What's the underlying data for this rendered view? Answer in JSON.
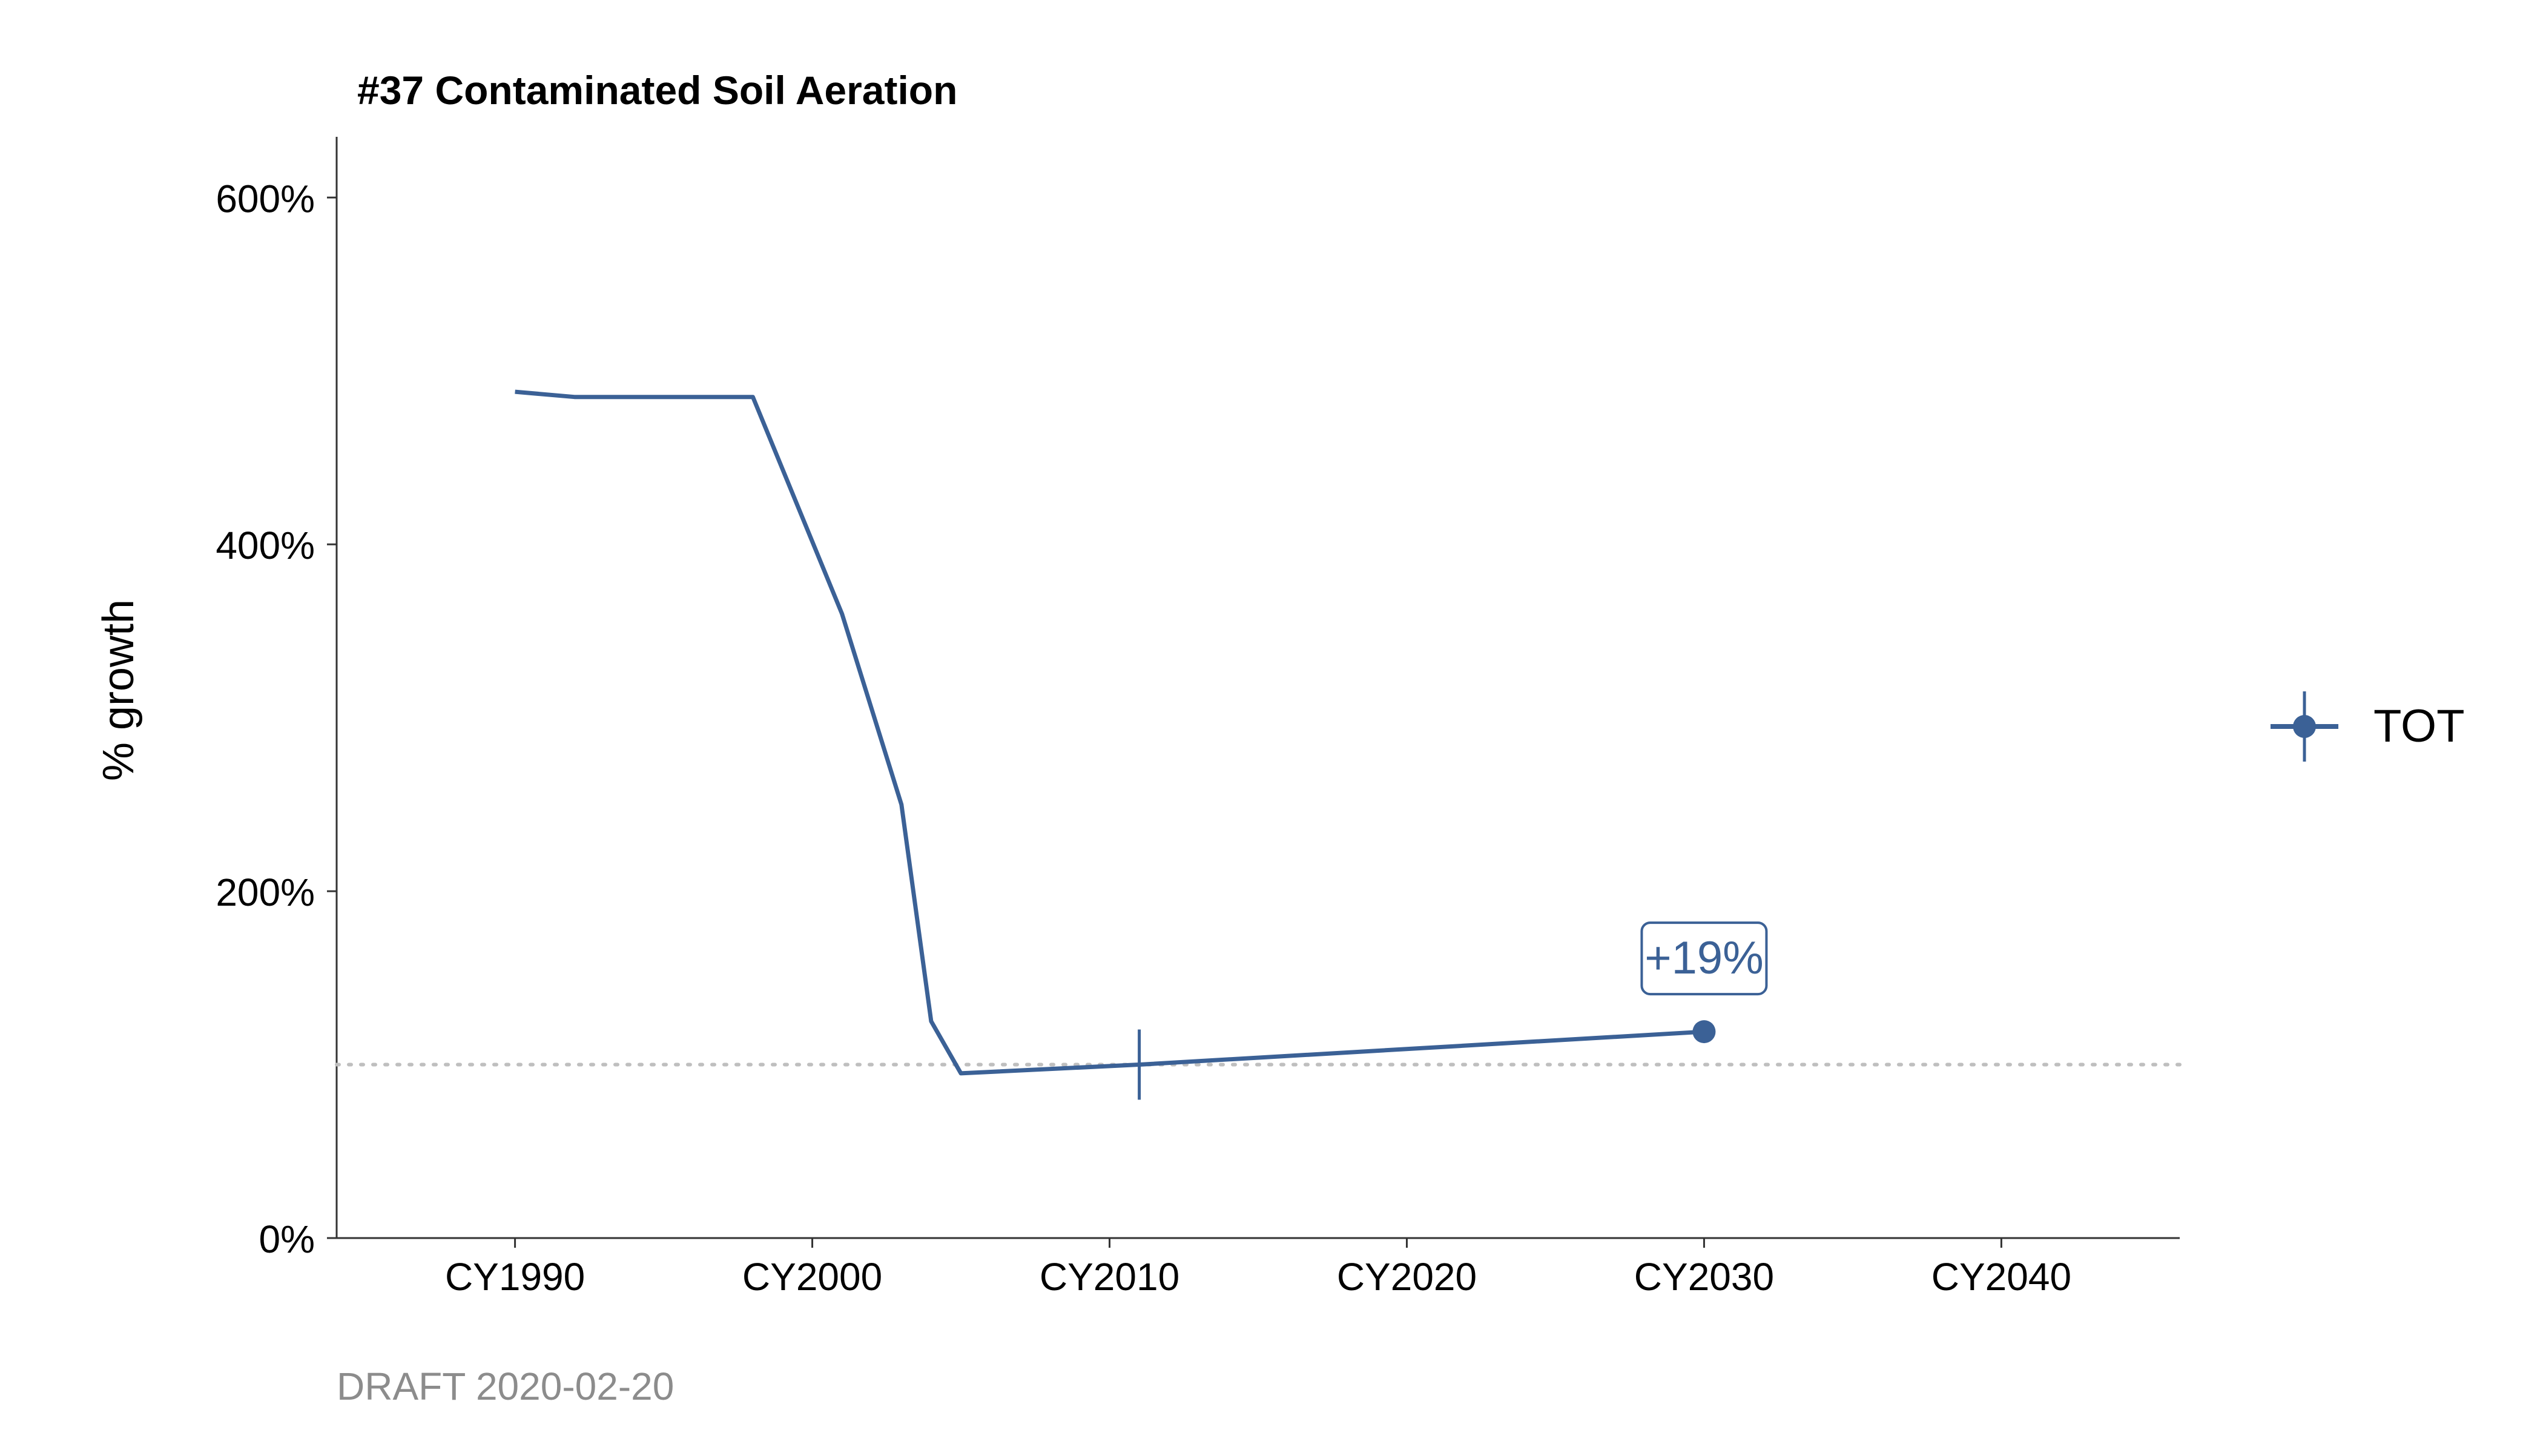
{
  "chart_data": {
    "type": "line",
    "title": "#37 Contaminated Soil Aeration",
    "xlabel": "",
    "ylabel": "% growth",
    "x_categories": [
      "CY1990",
      "CY2000",
      "CY2010",
      "CY2020",
      "CY2030",
      "CY2040"
    ],
    "xlim": [
      1984,
      2046
    ],
    "ylim": [
      0,
      6.35
    ],
    "y_ticks": [
      0,
      2,
      4,
      6
    ],
    "y_tick_labels": [
      "0%",
      "200%",
      "400%",
      "600%"
    ],
    "reference_line": {
      "y": 1.0,
      "style": "dotted",
      "color": "#bfbfbf"
    },
    "series": [
      {
        "name": "TOT",
        "color": "#3b6196",
        "x": [
          1990,
          1992,
          1998,
          2001,
          2003,
          2004,
          2005,
          2011,
          2030
        ],
        "y": [
          4.88,
          4.85,
          4.85,
          3.6,
          2.5,
          1.25,
          0.95,
          1.0,
          1.19
        ]
      }
    ],
    "base_year_marker": {
      "x": 2011,
      "y": 1.0
    },
    "end_point": {
      "x": 2030,
      "y": 1.19
    },
    "annotation": {
      "text": "+19%",
      "x": 2030,
      "y": 1.19
    },
    "legend": {
      "position": "right",
      "label": "TOT"
    },
    "grid": false
  },
  "caption": "DRAFT 2020-02-20"
}
